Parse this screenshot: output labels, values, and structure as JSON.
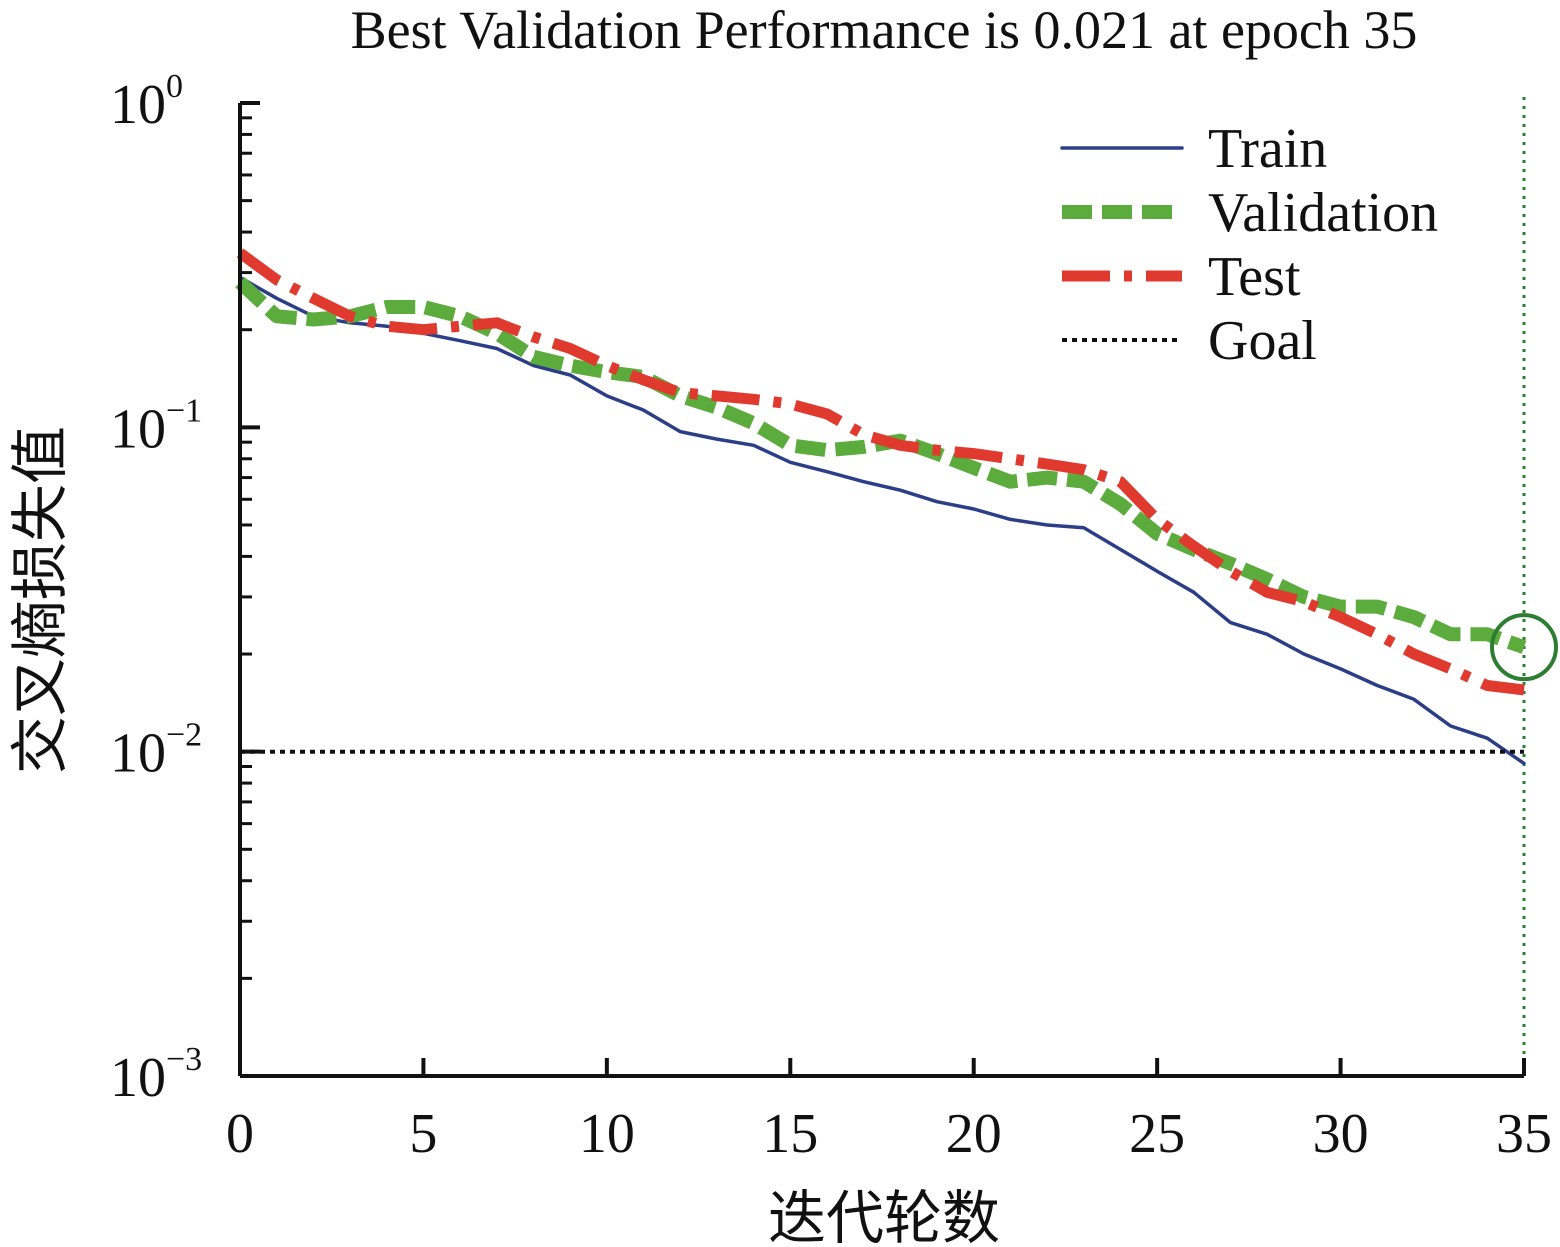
{
  "chart_data": {
    "type": "line",
    "title": "Best Validation Performance is 0.021 at epoch 35",
    "xlabel": "迭代轮数",
    "ylabel": "交叉熵损失值",
    "xlim": [
      0,
      35
    ],
    "ylim": [
      0.001,
      1
    ],
    "yscale": "log",
    "x_ticks": [
      0,
      5,
      10,
      15,
      20,
      25,
      30,
      35
    ],
    "x_tick_labels": [
      "0",
      "5",
      "10",
      "15",
      "20",
      "25",
      "30",
      "35"
    ],
    "y_ticks": [
      {
        "value": 1,
        "base": "10",
        "exp": "0"
      },
      {
        "value": 0.1,
        "base": "10",
        "exp": "−1"
      },
      {
        "value": 0.01,
        "base": "10",
        "exp": "−2"
      },
      {
        "value": 0.001,
        "base": "10",
        "exp": "−3"
      }
    ],
    "legend_position": "top-right",
    "best": {
      "epoch": 35,
      "value": 0.021,
      "color": "#2e7d32"
    },
    "series": [
      {
        "name": "Train",
        "style": "solid",
        "color": "#2c3e87",
        "x": [
          0,
          1,
          2,
          3,
          4,
          5,
          6,
          7,
          8,
          9,
          10,
          11,
          12,
          13,
          14,
          15,
          16,
          17,
          18,
          19,
          20,
          21,
          22,
          23,
          24,
          25,
          26,
          27,
          28,
          29,
          30,
          31,
          32,
          33,
          34,
          35
        ],
        "y": [
          0.29,
          0.25,
          0.22,
          0.21,
          0.205,
          0.195,
          0.185,
          0.175,
          0.155,
          0.145,
          0.125,
          0.113,
          0.097,
          0.092,
          0.088,
          0.078,
          0.073,
          0.068,
          0.064,
          0.059,
          0.056,
          0.052,
          0.05,
          0.049,
          0.042,
          0.036,
          0.031,
          0.025,
          0.023,
          0.02,
          0.018,
          0.016,
          0.0145,
          0.012,
          0.011,
          0.0092
        ]
      },
      {
        "name": "Validation",
        "style": "dashed",
        "color": "#5bab3d",
        "x": [
          0,
          1,
          2,
          3,
          4,
          5,
          6,
          7,
          8,
          9,
          10,
          11,
          12,
          13,
          14,
          15,
          16,
          17,
          18,
          19,
          20,
          21,
          22,
          23,
          24,
          25,
          26,
          27,
          28,
          29,
          30,
          31,
          32,
          33,
          34,
          35
        ],
        "y": [
          0.28,
          0.22,
          0.215,
          0.22,
          0.235,
          0.235,
          0.22,
          0.195,
          0.165,
          0.155,
          0.148,
          0.143,
          0.125,
          0.115,
          0.103,
          0.088,
          0.085,
          0.087,
          0.091,
          0.083,
          0.075,
          0.068,
          0.07,
          0.068,
          0.058,
          0.047,
          0.042,
          0.038,
          0.034,
          0.03,
          0.028,
          0.028,
          0.026,
          0.023,
          0.023,
          0.021
        ]
      },
      {
        "name": "Test",
        "style": "dashdot",
        "color": "#e03a2e",
        "x": [
          0,
          1,
          2,
          3,
          4,
          5,
          6,
          7,
          8,
          9,
          10,
          11,
          12,
          13,
          14,
          15,
          16,
          17,
          18,
          19,
          20,
          21,
          22,
          23,
          24,
          25,
          26,
          27,
          28,
          29,
          30,
          31,
          32,
          33,
          34,
          35
        ],
        "y": [
          0.345,
          0.285,
          0.25,
          0.22,
          0.205,
          0.2,
          0.205,
          0.21,
          0.19,
          0.175,
          0.155,
          0.14,
          0.128,
          0.125,
          0.122,
          0.118,
          0.11,
          0.095,
          0.088,
          0.085,
          0.083,
          0.08,
          0.077,
          0.074,
          0.068,
          0.052,
          0.043,
          0.036,
          0.031,
          0.029,
          0.026,
          0.023,
          0.02,
          0.018,
          0.016,
          0.0155
        ]
      },
      {
        "name": "Goal",
        "style": "dotted",
        "color": "#111111",
        "x": [
          0,
          35
        ],
        "y": [
          0.01,
          0.01
        ]
      }
    ]
  }
}
